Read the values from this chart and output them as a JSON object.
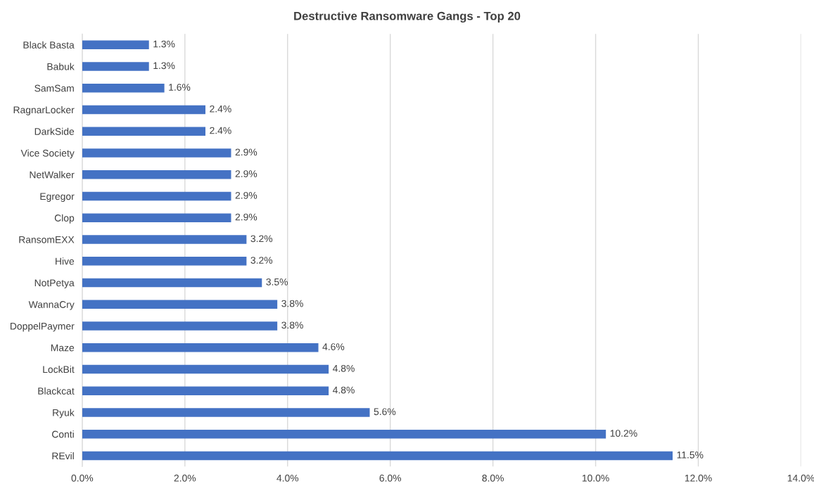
{
  "chart_data": {
    "type": "bar",
    "orientation": "horizontal",
    "title": "Destructive Ransomware Gangs - Top 20",
    "categories": [
      "Black Basta",
      "Babuk",
      "SamSam",
      "RagnarLocker",
      "DarkSide",
      "Vice Society",
      "NetWalker",
      "Egregor",
      "Clop",
      "RansomEXX",
      "Hive",
      "NotPetya",
      "WannaCry",
      "DoppelPaymer",
      "Maze",
      "LockBit",
      "Blackcat",
      "Ryuk",
      "Conti",
      "REvil"
    ],
    "values": [
      1.3,
      1.3,
      1.6,
      2.4,
      2.4,
      2.9,
      2.9,
      2.9,
      2.9,
      3.2,
      3.2,
      3.5,
      3.8,
      3.8,
      4.6,
      4.8,
      4.8,
      5.6,
      10.2,
      11.5
    ],
    "value_labels": [
      "1.3%",
      "1.3%",
      "1.6%",
      "2.4%",
      "2.4%",
      "2.9%",
      "2.9%",
      "2.9%",
      "2.9%",
      "3.2%",
      "3.2%",
      "3.5%",
      "3.8%",
      "3.8%",
      "4.6%",
      "4.8%",
      "4.8%",
      "5.6%",
      "10.2%",
      "11.5%"
    ],
    "color": "#4472c4",
    "xlim": [
      0,
      14
    ],
    "xticks": [
      {
        "value": 0,
        "label": "0.0%"
      },
      {
        "value": 2,
        "label": "2.0%"
      },
      {
        "value": 4,
        "label": "4.0%"
      },
      {
        "value": 6,
        "label": "6.0%"
      },
      {
        "value": 8,
        "label": "8.0%"
      },
      {
        "value": 10,
        "label": "10.0%"
      },
      {
        "value": 12,
        "label": "12.0%"
      },
      {
        "value": 14,
        "label": "14.0%"
      }
    ],
    "grid": "x",
    "legend": false
  }
}
